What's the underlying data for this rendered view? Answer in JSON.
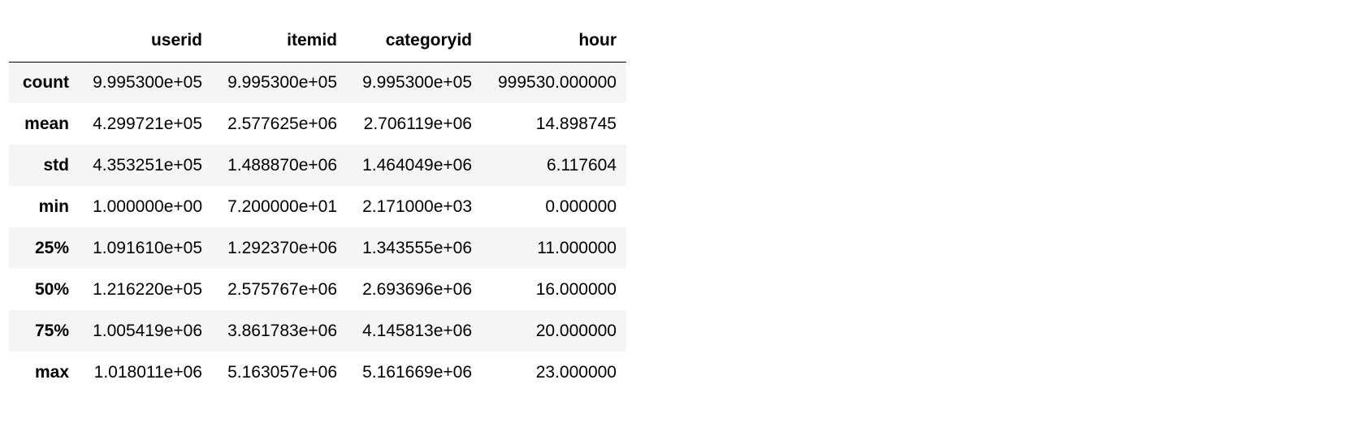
{
  "table": {
    "index_header": "",
    "columns": [
      "userid",
      "itemid",
      "categoryid",
      "hour"
    ],
    "rows": [
      {
        "label": "count",
        "values": [
          "9.995300e+05",
          "9.995300e+05",
          "9.995300e+05",
          "999530.000000"
        ]
      },
      {
        "label": "mean",
        "values": [
          "4.299721e+05",
          "2.577625e+06",
          "2.706119e+06",
          "14.898745"
        ]
      },
      {
        "label": "std",
        "values": [
          "4.353251e+05",
          "1.488870e+06",
          "1.464049e+06",
          "6.117604"
        ]
      },
      {
        "label": "min",
        "values": [
          "1.000000e+00",
          "7.200000e+01",
          "2.171000e+03",
          "0.000000"
        ]
      },
      {
        "label": "25%",
        "values": [
          "1.091610e+05",
          "1.292370e+06",
          "1.343555e+06",
          "11.000000"
        ]
      },
      {
        "label": "50%",
        "values": [
          "1.216220e+05",
          "2.575767e+06",
          "2.693696e+06",
          "16.000000"
        ]
      },
      {
        "label": "75%",
        "values": [
          "1.005419e+06",
          "3.861783e+06",
          "4.145813e+06",
          "20.000000"
        ]
      },
      {
        "label": "max",
        "values": [
          "1.018011e+06",
          "5.163057e+06",
          "5.161669e+06",
          "23.000000"
        ]
      }
    ]
  }
}
